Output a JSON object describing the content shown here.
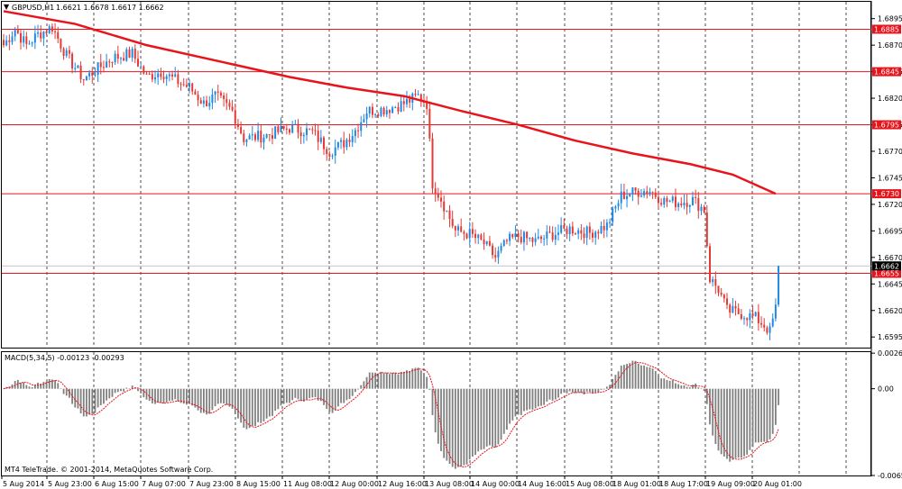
{
  "window": {
    "symbol_title": "GBPUSD,H1",
    "ohlc": "1.6621 1.6678 1.6617 1.6662",
    "copyright": "MT4 TeleTrade. © 2001-2014, MetaQuotes Software Corp."
  },
  "chart_data": [
    {
      "type": "candlestick",
      "title": "GBPUSD,H1",
      "ylim": [
        1.6585,
        1.691
      ],
      "y_ticks": [
        "1.6895",
        "1.6870",
        "1.6845",
        "1.6820",
        "1.6795",
        "1.6770",
        "1.6745",
        "1.6720",
        "1.6695",
        "1.6670",
        "1.6645",
        "1.6620",
        "1.6595"
      ],
      "x_ticks": [
        "5 Aug 2014",
        "5 Aug 23:00",
        "6 Aug 15:00",
        "7 Aug 07:00",
        "7 Aug 23:00",
        "8 Aug 15:00",
        "11 Aug 08:00",
        "12 Aug 00:00",
        "12 Aug 16:00",
        "13 Aug 08:00",
        "14 Aug 00:00",
        "14 Aug 16:00",
        "15 Aug 08:00",
        "18 Aug 01:00",
        "18 Aug 17:00",
        "19 Aug 09:00",
        "20 Aug 01:00"
      ],
      "grid": true,
      "horizontal_levels": [
        {
          "value": 1.6885,
          "label": "1.6885"
        },
        {
          "value": 1.6845,
          "label": "1.6845"
        },
        {
          "value": 1.6795,
          "label": "1.6795"
        },
        {
          "value": 1.673,
          "label": "1.6730"
        },
        {
          "value": 1.6655,
          "label": "1.6655"
        }
      ],
      "current_price": {
        "value": 1.6662,
        "label": "1.6662"
      },
      "moving_average": [
        [
          0,
          1.6902
        ],
        [
          25,
          1.689
        ],
        [
          50,
          1.687
        ],
        [
          75,
          1.6855
        ],
        [
          100,
          1.684
        ],
        [
          120,
          1.683
        ],
        [
          140,
          1.6822
        ],
        [
          160,
          1.6808
        ],
        [
          180,
          1.6795
        ],
        [
          200,
          1.678
        ],
        [
          220,
          1.6768
        ],
        [
          240,
          1.6758
        ],
        [
          255,
          1.6748
        ],
        [
          270,
          1.673
        ]
      ],
      "path_points": [
        [
          0,
          1.687
        ],
        [
          4,
          1.6885
        ],
        [
          8,
          1.687
        ],
        [
          12,
          1.688
        ],
        [
          17,
          1.6887
        ],
        [
          22,
          1.686
        ],
        [
          28,
          1.6838
        ],
        [
          33,
          1.6848
        ],
        [
          38,
          1.6858
        ],
        [
          45,
          1.6862
        ],
        [
          50,
          1.684
        ],
        [
          55,
          1.6845
        ],
        [
          62,
          1.6834
        ],
        [
          65,
          1.683
        ],
        [
          70,
          1.6815
        ],
        [
          74,
          1.6822
        ],
        [
          80,
          1.6808
        ],
        [
          84,
          1.6782
        ],
        [
          92,
          1.6785
        ],
        [
          100,
          1.6792
        ],
        [
          108,
          1.6788
        ],
        [
          114,
          1.677
        ],
        [
          119,
          1.6778
        ],
        [
          123,
          1.679
        ],
        [
          127,
          1.6808
        ],
        [
          134,
          1.681
        ],
        [
          140,
          1.6815
        ],
        [
          145,
          1.6822
        ],
        [
          148,
          1.6815
        ],
        [
          150,
          1.674
        ],
        [
          153,
          1.6725
        ],
        [
          158,
          1.6695
        ],
        [
          163,
          1.6692
        ],
        [
          168,
          1.6683
        ],
        [
          172,
          1.667
        ],
        [
          176,
          1.6685
        ],
        [
          180,
          1.669
        ],
        [
          186,
          1.6685
        ],
        [
          192,
          1.6692
        ],
        [
          198,
          1.6697
        ],
        [
          205,
          1.6693
        ],
        [
          211,
          1.67
        ],
        [
          216,
          1.6728
        ],
        [
          221,
          1.6732
        ],
        [
          226,
          1.6733
        ],
        [
          231,
          1.6723
        ],
        [
          236,
          1.6722
        ],
        [
          241,
          1.6724
        ],
        [
          245,
          1.6715
        ],
        [
          247,
          1.665
        ],
        [
          250,
          1.664
        ],
        [
          253,
          1.662
        ],
        [
          258,
          1.6617
        ],
        [
          263,
          1.6613
        ],
        [
          266,
          1.6606
        ],
        [
          268,
          1.66
        ],
        [
          270,
          1.6622
        ],
        [
          271,
          1.6662
        ]
      ]
    },
    {
      "type": "bar",
      "title": "MACD(5,34,5) -0.00123 -0.00293",
      "ylim": [
        -0.00656,
        0.0027
      ],
      "y_ticks": [
        "0.00269",
        "0.00",
        "-0.00656"
      ],
      "signal_line": true
    }
  ],
  "colors": {
    "bull": "#1e88e5",
    "bear": "#e53935",
    "ma": "#e8141c",
    "level": "#e8141c",
    "grid": "#000000",
    "macd_hist": "#808080",
    "macd_signal": "#e8141c",
    "price_label": "#000000"
  }
}
